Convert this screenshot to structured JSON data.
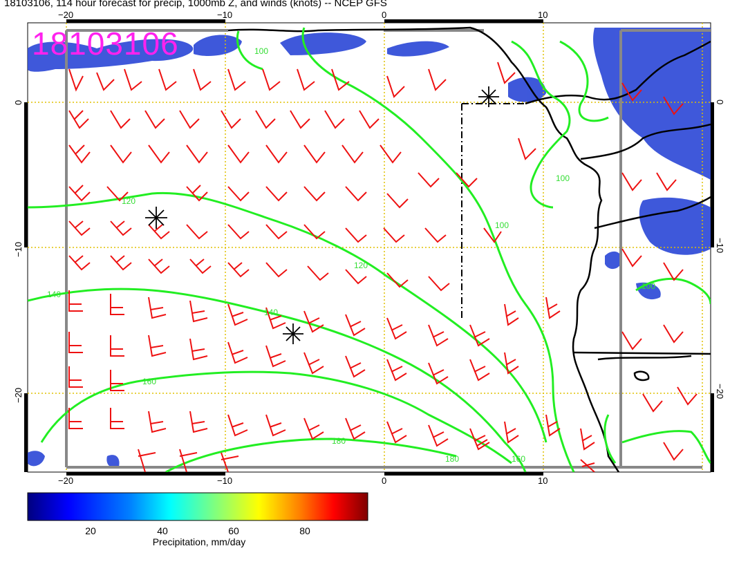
{
  "title": "18103106, 114 hour forecast for precip, 1000mb Z, and winds (knots) -- NCEP GFS",
  "stamp": "18103106",
  "axes": {
    "x_ticks": [
      "−20",
      "−10",
      "0",
      "10"
    ],
    "y_ticks": [
      "0",
      "−10",
      "−20"
    ]
  },
  "contours": [
    "100",
    "120",
    "140",
    "160",
    "180"
  ],
  "colorbar": {
    "label": "Precipitation, mm/day",
    "ticks": [
      "20",
      "40",
      "60",
      "80"
    ],
    "colors": [
      "#00007f",
      "#0000ff",
      "#007fff",
      "#00ffff",
      "#7fff7f",
      "#ffff00",
      "#ff7f00",
      "#ff0000",
      "#7f0000"
    ]
  },
  "colors": {
    "contour": "#22ee22",
    "barb": "#ee1111",
    "grid": "#e0c000",
    "coast": "#000000",
    "stamp": "#ff22ee"
  }
}
